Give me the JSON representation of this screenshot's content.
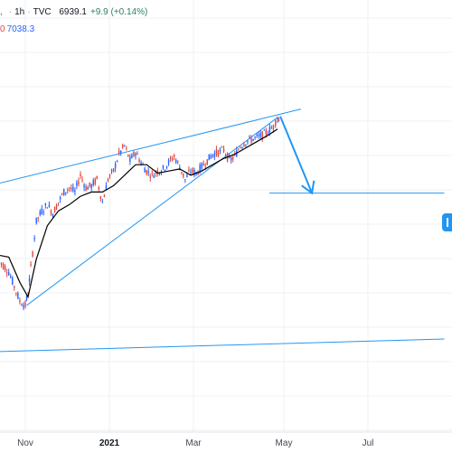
{
  "header": {
    "symbol_tail": ",",
    "interval": "1h",
    "source": "TVC",
    "last": "6939.1",
    "change": "+9.9 (+0.14%)",
    "indicator_tail": "0",
    "indicator_value": "7038.3"
  },
  "colors": {
    "trendline": "#2196f3",
    "candle_up": "#2962ff",
    "candle_down": "#e0453a",
    "moving_average": "#000000",
    "grid": "#eef0f3"
  },
  "icons": {
    "price_tag": "price-label-marker"
  },
  "chart_data": {
    "type": "candlestick",
    "interval": "1h",
    "x_axis": {
      "tick_labels": [
        "Nov",
        "2021",
        "Mar",
        "May",
        "Jul"
      ],
      "bold_tick": "2021"
    },
    "y_axis": {
      "tick_labels_visible": false
    },
    "grid": true,
    "legend": "none",
    "annotations": [
      {
        "kind": "rising-wedge-upper-line",
        "from": [
          "Oct 12",
          6740
        ],
        "to": [
          "May 20",
          7095
        ]
      },
      {
        "kind": "rising-wedge-lower-line",
        "from": [
          "Nov 2",
          6160
        ],
        "to": [
          "May 3",
          7055
        ]
      },
      {
        "kind": "lower-channel-line",
        "from": [
          "Oct 12",
          5940
        ],
        "to": [
          "Sep 1",
          6000
        ]
      },
      {
        "kind": "projection-arrow",
        "from": [
          "May 5",
          7060
        ],
        "to": [
          "May 28",
          6695
        ]
      },
      {
        "kind": "target-level",
        "from": [
          "Apr 27",
          6695
        ],
        "to": [
          "Sep 1",
          6695
        ]
      }
    ],
    "series": [
      {
        "kind": "price",
        "x": [
          "Oct 12",
          "Oct 16",
          "Oct 20",
          "Oct 24",
          "Oct 28",
          "Nov 1",
          "Nov 3",
          "Nov 5",
          "Nov 9",
          "Nov 13",
          "Nov 17",
          "Nov 21",
          "Nov 25",
          "Nov 29",
          "Dec 3",
          "Dec 7",
          "Dec 11",
          "Dec 15",
          "Dec 19",
          "Dec 23",
          "Dec 27",
          "Dec 31",
          "Jan 4",
          "Jan 8",
          "Jan 12",
          "Jan 16",
          "Jan 20",
          "Jan 24",
          "Jan 28",
          "Feb 1",
          "Feb 5",
          "Feb 9",
          "Feb 13",
          "Feb 17",
          "Feb 21",
          "Feb 25",
          "Mar 1",
          "Mar 5",
          "Mar 9",
          "Mar 13",
          "Mar 17",
          "Mar 21",
          "Mar 25",
          "Mar 29",
          "Apr 2",
          "Apr 6",
          "Apr 10",
          "Apr 14",
          "Apr 18",
          "Apr 22",
          "Apr 26",
          "Apr 30",
          "May 3",
          "May 5"
        ],
        "y": [
          6370,
          6350,
          6320,
          6250,
          6180,
          6160,
          6220,
          6340,
          6560,
          6610,
          6640,
          6600,
          6650,
          6700,
          6720,
          6700,
          6780,
          6720,
          6730,
          6760,
          6650,
          6760,
          6800,
          6880,
          6920,
          6850,
          6890,
          6840,
          6800,
          6780,
          6800,
          6810,
          6840,
          6870,
          6820,
          6760,
          6800,
          6790,
          6820,
          6850,
          6880,
          6890,
          6900,
          6850,
          6870,
          6920,
          6940,
          6950,
          6960,
          6970,
          6990,
          7010,
          7060,
          7020
        ]
      },
      {
        "kind": "moving-average",
        "x": [
          "Oct 12",
          "Oct 20",
          "Oct 28",
          "Nov 3",
          "Nov 9",
          "Nov 17",
          "Nov 25",
          "Dec 3",
          "Dec 11",
          "Dec 19",
          "Dec 27",
          "Jan 4",
          "Jan 12",
          "Jan 20",
          "Jan 28",
          "Feb 5",
          "Feb 13",
          "Feb 21",
          "Mar 1",
          "Mar 9",
          "Mar 17",
          "Mar 25",
          "Apr 2",
          "Apr 10",
          "Apr 18",
          "Apr 26",
          "May 3"
        ],
        "y": [
          6400,
          6390,
          6270,
          6200,
          6380,
          6540,
          6610,
          6640,
          6680,
          6700,
          6700,
          6730,
          6780,
          6830,
          6830,
          6790,
          6800,
          6810,
          6780,
          6800,
          6830,
          6860,
          6880,
          6910,
          6940,
          6970,
          7000
        ]
      }
    ]
  }
}
